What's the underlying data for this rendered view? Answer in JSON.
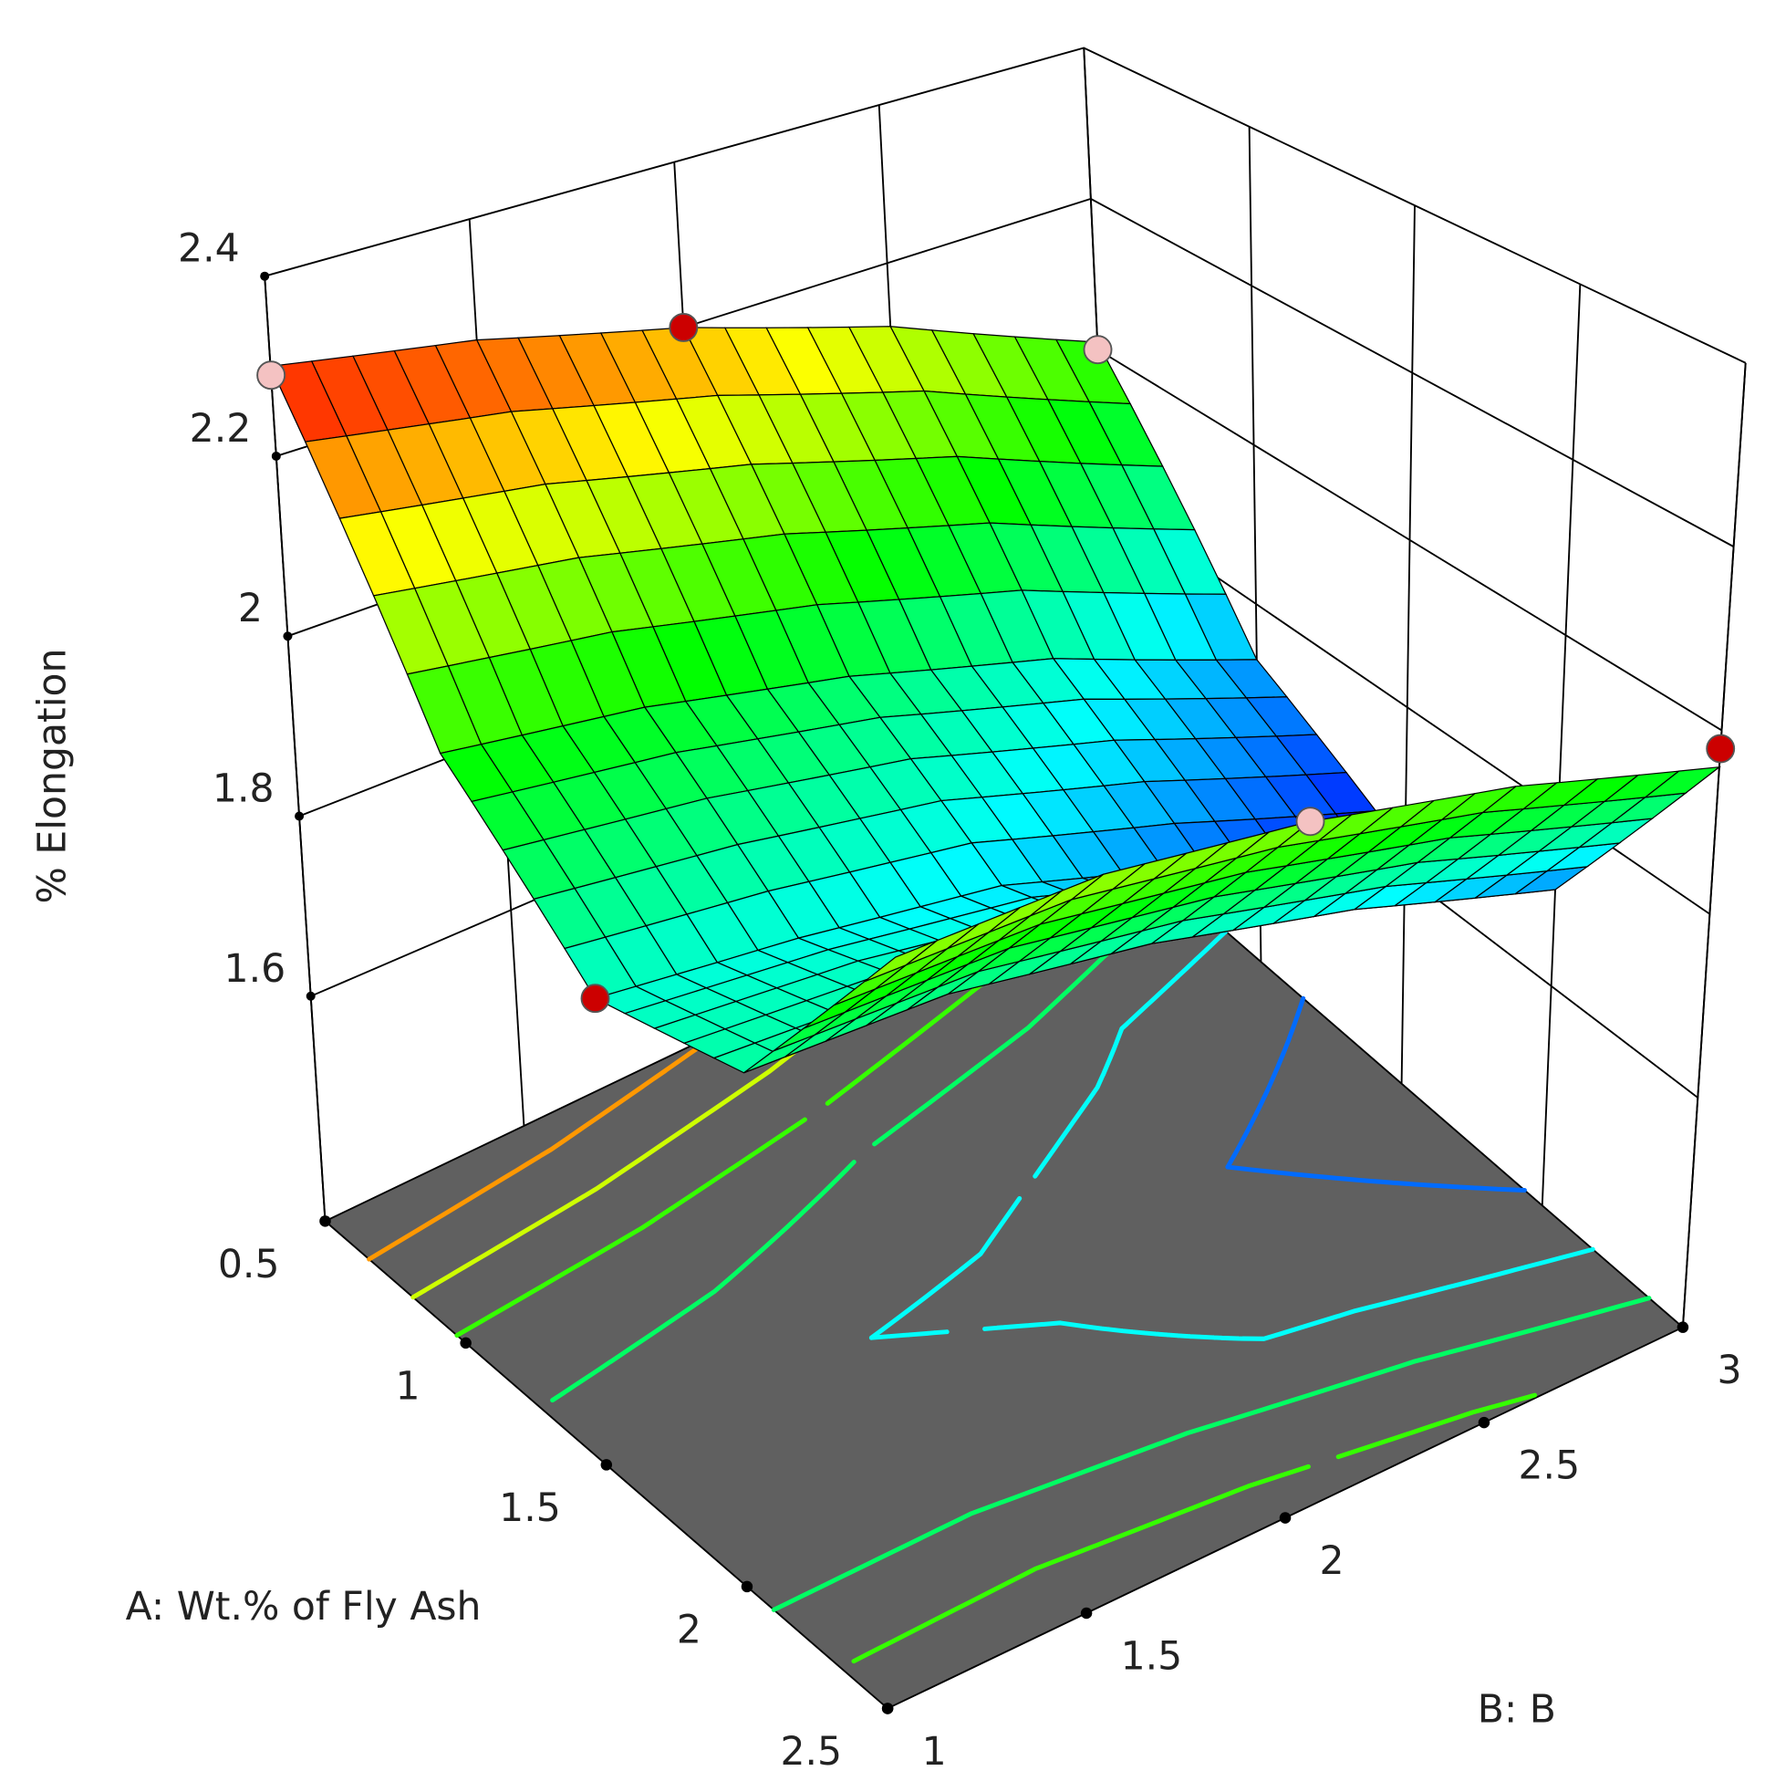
{
  "chart_data": {
    "type": "surface",
    "x_label": "A: Wt.% of Fly Ash",
    "y_label": "B: B",
    "z_label": "% Elongation",
    "x": [
      0.5,
      1,
      1.5,
      2,
      2.5
    ],
    "y": [
      1,
      1.5,
      2,
      2.5,
      3
    ],
    "z": [
      [
        2.3,
        2.26,
        2.2,
        2.12,
        2.01
      ],
      [
        1.98,
        1.95,
        1.9,
        1.83,
        1.73
      ],
      [
        1.83,
        1.81,
        1.78,
        1.71,
        1.63
      ],
      [
        1.86,
        1.86,
        1.83,
        1.78,
        1.71
      ],
      [
        2.07,
        2.08,
        2.06,
        2.02,
        1.96
      ]
    ],
    "xlim": [
      0.5,
      2.5
    ],
    "xticks": [
      0.5,
      1,
      1.5,
      2,
      2.5
    ],
    "ylim": [
      1,
      3
    ],
    "yticks": [
      1,
      1.5,
      2,
      2.5,
      3
    ],
    "zlim": [
      1.35,
      2.4
    ],
    "zticks": [
      1.6,
      1.8,
      2,
      2.2,
      2.4
    ],
    "colormap": [
      "#0000ff",
      "#00ffff",
      "#00ff00",
      "#ffff00",
      "#ff0000"
    ],
    "floor_color": "#606060",
    "wall_line_color": "#000000",
    "contour_levels": [
      1.7,
      1.8,
      1.9,
      2.0,
      2.1,
      2.2
    ],
    "points": {
      "x": [
        0.5,
        0.5,
        0.5,
        2.5,
        2.5,
        1.5
      ],
      "y": [
        1,
        2,
        3,
        3,
        2,
        1
      ],
      "z": [
        2.29,
        2.2,
        2.0,
        1.98,
        2.06,
        1.83
      ],
      "colors": [
        "#f4c2c2",
        "#cc0000",
        "#f4c2c2",
        "#cc0000",
        "#f4c2c2",
        "#cc0000"
      ]
    }
  }
}
